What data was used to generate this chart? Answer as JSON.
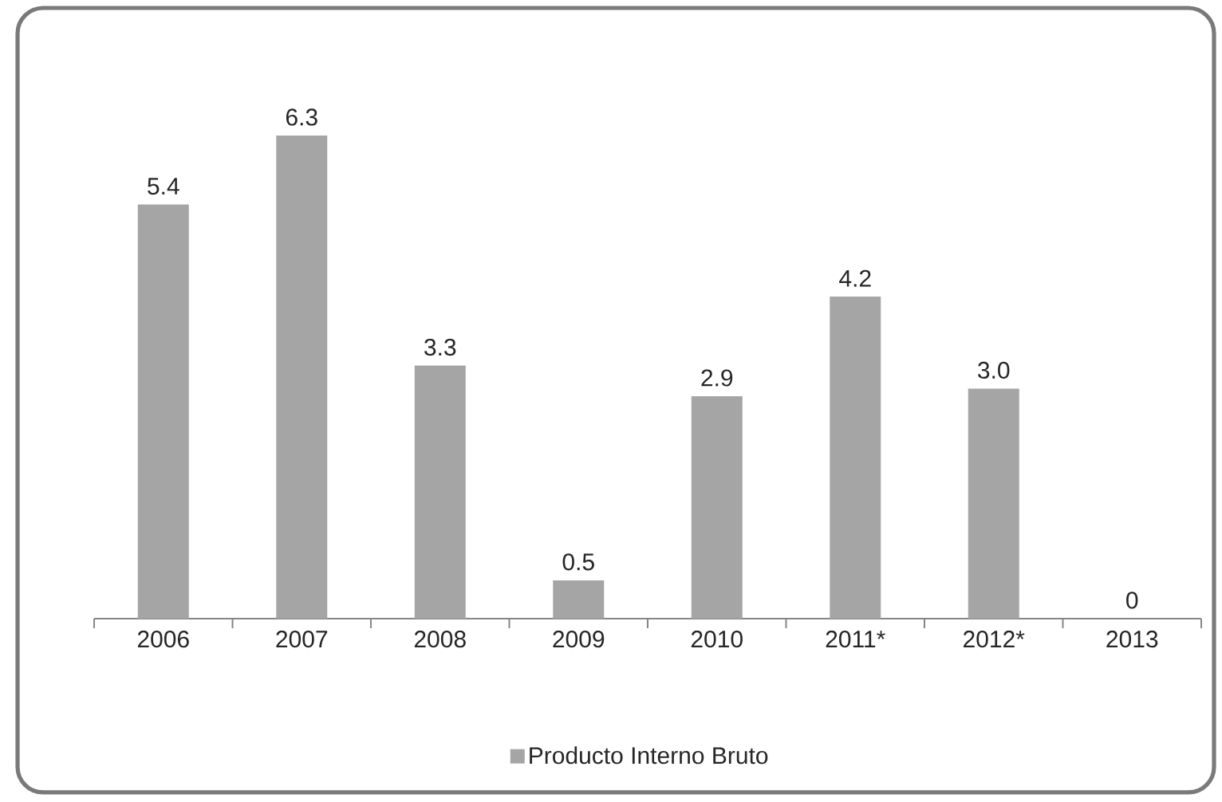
{
  "chart_data": {
    "type": "bar",
    "categories": [
      "2006",
      "2007",
      "2008",
      "2009",
      "2010",
      "2011*",
      "2012*",
      "2013"
    ],
    "series": [
      {
        "name": "Producto Interno Bruto",
        "color": "#a5a5a5",
        "values": [
          5.4,
          6.3,
          3.3,
          0.5,
          2.9,
          4.2,
          3.0,
          0
        ],
        "value_labels": [
          "5.4",
          "6.3",
          "3.3",
          "0.5",
          "2.9",
          "4.2",
          "3.0",
          "0"
        ]
      }
    ],
    "tick_labels": "x",
    "legend": "bottom"
  }
}
